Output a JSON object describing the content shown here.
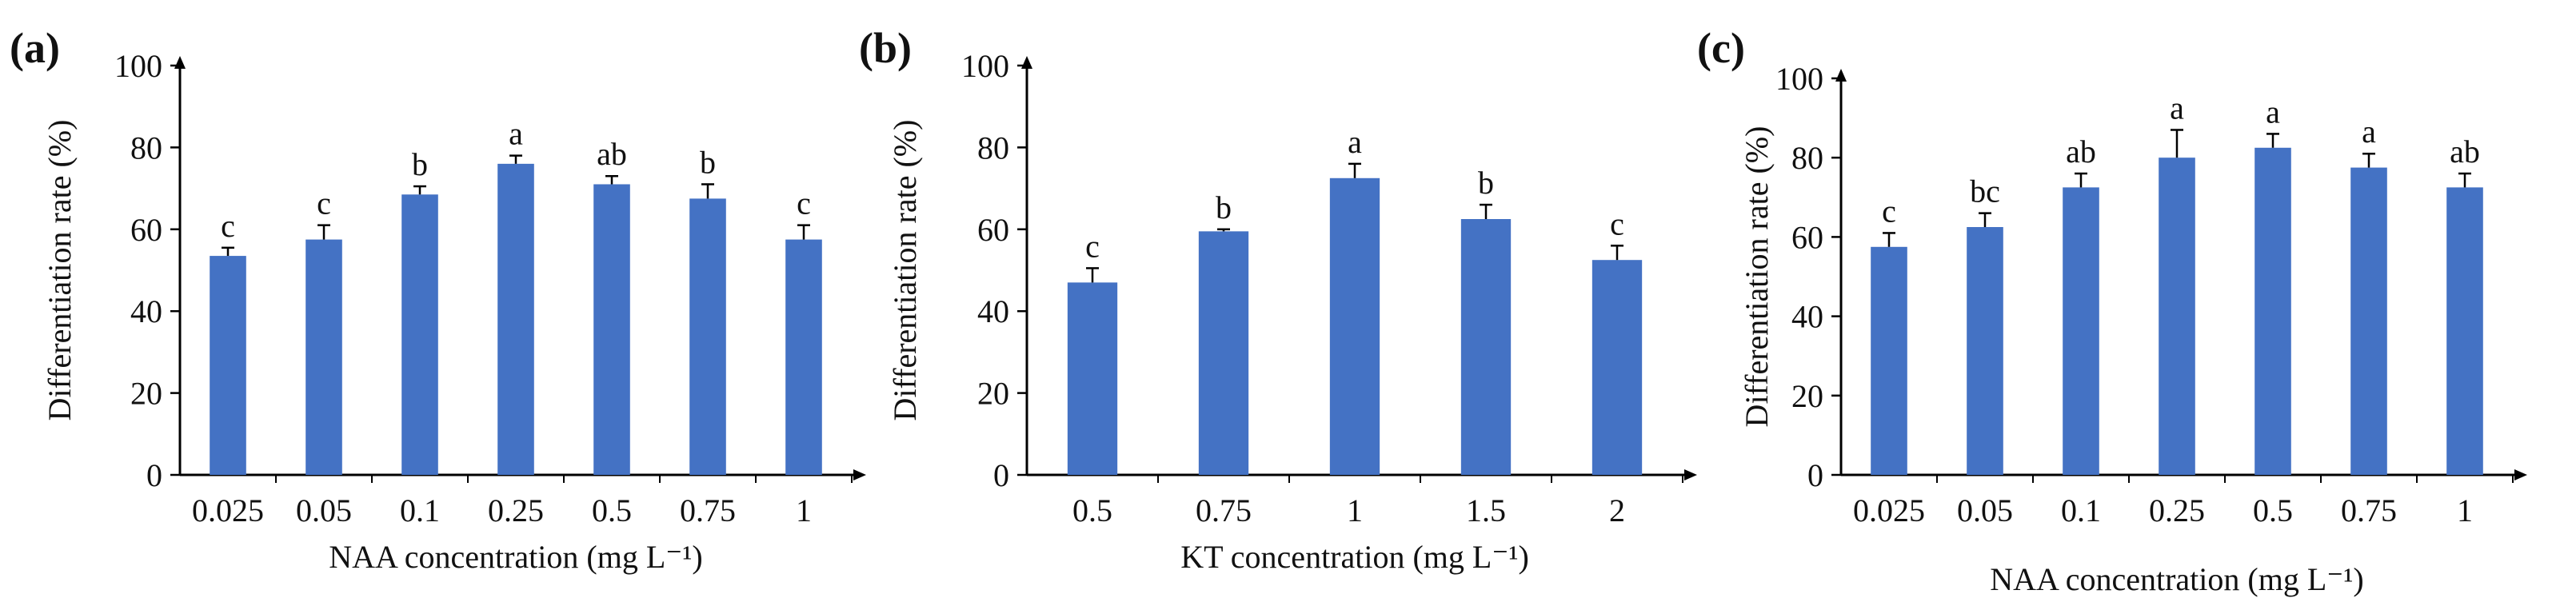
{
  "colors": {
    "bar": "#4472C4",
    "axis": "#000000",
    "text": "#111111"
  },
  "chart_data": [
    {
      "type": "bar",
      "panel_label": "(a)",
      "xlabel": "NAA concentration (mg L⁻¹)",
      "ylabel": "Differentiation rate (%)",
      "categories": [
        "0.025",
        "0.05",
        "0.1",
        "0.25",
        "0.5",
        "0.75",
        "1"
      ],
      "values": [
        53.5,
        57.5,
        68.5,
        76,
        71,
        67.5,
        57.5
      ],
      "errors": [
        2,
        3.5,
        2,
        2,
        2,
        3.5,
        3.5
      ],
      "significance": [
        "c",
        "c",
        "b",
        "a",
        "ab",
        "b",
        "c"
      ],
      "ylim": [
        0,
        100
      ],
      "yticks": [
        "0",
        "20",
        "40",
        "60",
        "80",
        "100"
      ],
      "ytick_values": [
        0,
        20,
        40,
        60,
        80,
        100
      ]
    },
    {
      "type": "bar",
      "panel_label": "(b)",
      "xlabel": "KT concentration (mg L⁻¹)",
      "ylabel": "Differentiation rate (%)",
      "categories": [
        "0.5",
        "0.75",
        "1",
        "1.5",
        "2"
      ],
      "values": [
        47,
        59.5,
        72.5,
        62.5,
        52.5
      ],
      "errors": [
        3.5,
        0.5,
        3.5,
        3.5,
        3.5
      ],
      "significance": [
        "c",
        "b",
        "a",
        "b",
        "c"
      ],
      "ylim": [
        0,
        100
      ],
      "yticks": [
        "0",
        "20",
        "40",
        "60",
        "80",
        "100"
      ],
      "ytick_values": [
        0,
        20,
        40,
        60,
        80,
        100
      ]
    },
    {
      "type": "bar",
      "panel_label": "(c)",
      "xlabel": "NAA concentration (mg L⁻¹)",
      "ylabel": "Differentiation rate (%)",
      "categories": [
        "0.025",
        "0.05",
        "0.1",
        "0.25",
        "0.5",
        "0.75",
        "1"
      ],
      "values": [
        57.5,
        62.5,
        72.5,
        80,
        82.5,
        77.5,
        72.5
      ],
      "errors": [
        3.5,
        3.5,
        3.5,
        7,
        3.5,
        3.5,
        3.5
      ],
      "significance": [
        "c",
        "bc",
        "ab",
        "a",
        "a",
        "a",
        "ab"
      ],
      "ylim": [
        0,
        100
      ],
      "yticks": [
        "0",
        "20",
        "40",
        "60",
        "80",
        "100"
      ],
      "ytick_values": [
        0,
        20,
        40,
        60,
        80,
        100
      ]
    }
  ]
}
